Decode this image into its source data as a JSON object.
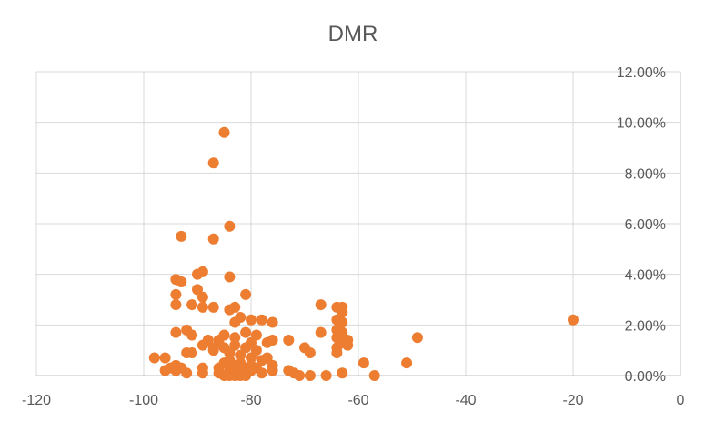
{
  "chart_data": {
    "type": "scatter",
    "title": "DMR",
    "xlabel": "",
    "ylabel": "",
    "xlim": [
      -120,
      0
    ],
    "ylim": [
      0,
      0.12
    ],
    "x_ticks": [
      -120,
      -100,
      -80,
      -60,
      -40,
      -20,
      0
    ],
    "x_tick_labels": [
      "-120",
      "-100",
      "-80",
      "-60",
      "-40",
      "-20",
      "0"
    ],
    "y_ticks": [
      0,
      0.02,
      0.04,
      0.06,
      0.08,
      0.1,
      0.12
    ],
    "y_tick_labels": [
      "0.00%",
      "2.00%",
      "4.00%",
      "6.00%",
      "8.00%",
      "10.00%",
      "12.00%"
    ],
    "y_axis_position": "right",
    "grid": true,
    "legend": "none",
    "series_color": "#ED7D31",
    "points": [
      {
        "x": -85,
        "y": 0.096
      },
      {
        "x": -87,
        "y": 0.084
      },
      {
        "x": -84,
        "y": 0.059
      },
      {
        "x": -93,
        "y": 0.055
      },
      {
        "x": -87,
        "y": 0.054
      },
      {
        "x": -89,
        "y": 0.041
      },
      {
        "x": -90,
        "y": 0.04
      },
      {
        "x": -84,
        "y": 0.039
      },
      {
        "x": -94,
        "y": 0.038
      },
      {
        "x": -93,
        "y": 0.037
      },
      {
        "x": -90,
        "y": 0.034
      },
      {
        "x": -94,
        "y": 0.032
      },
      {
        "x": -89,
        "y": 0.031
      },
      {
        "x": -81,
        "y": 0.032
      },
      {
        "x": -94,
        "y": 0.028
      },
      {
        "x": -91,
        "y": 0.028
      },
      {
        "x": -89,
        "y": 0.027
      },
      {
        "x": -87,
        "y": 0.027
      },
      {
        "x": -84,
        "y": 0.026
      },
      {
        "x": -83,
        "y": 0.027
      },
      {
        "x": -82,
        "y": 0.023
      },
      {
        "x": -83,
        "y": 0.021
      },
      {
        "x": -80,
        "y": 0.022
      },
      {
        "x": -78,
        "y": 0.022
      },
      {
        "x": -76,
        "y": 0.021
      },
      {
        "x": -92,
        "y": 0.018
      },
      {
        "x": -94,
        "y": 0.017
      },
      {
        "x": -91,
        "y": 0.016
      },
      {
        "x": -85,
        "y": 0.016
      },
      {
        "x": -81,
        "y": 0.017
      },
      {
        "x": -79,
        "y": 0.016
      },
      {
        "x": -88,
        "y": 0.014
      },
      {
        "x": -86,
        "y": 0.014
      },
      {
        "x": -83,
        "y": 0.015
      },
      {
        "x": -80,
        "y": 0.013
      },
      {
        "x": -77,
        "y": 0.013
      },
      {
        "x": -76,
        "y": 0.014
      },
      {
        "x": -73,
        "y": 0.014
      },
      {
        "x": -89,
        "y": 0.012
      },
      {
        "x": -87,
        "y": 0.011
      },
      {
        "x": -85,
        "y": 0.011
      },
      {
        "x": -83,
        "y": 0.012
      },
      {
        "x": -81,
        "y": 0.011
      },
      {
        "x": -79,
        "y": 0.01
      },
      {
        "x": -92,
        "y": 0.009
      },
      {
        "x": -91,
        "y": 0.009
      },
      {
        "x": -87,
        "y": 0.01
      },
      {
        "x": -84,
        "y": 0.009
      },
      {
        "x": -82,
        "y": 0.008
      },
      {
        "x": -80,
        "y": 0.007
      },
      {
        "x": -78,
        "y": 0.006
      },
      {
        "x": -77,
        "y": 0.007
      },
      {
        "x": -98,
        "y": 0.007
      },
      {
        "x": -96,
        "y": 0.007
      },
      {
        "x": -94,
        "y": 0.004
      },
      {
        "x": -95,
        "y": 0.003
      },
      {
        "x": -93,
        "y": 0.003
      },
      {
        "x": -96,
        "y": 0.002
      },
      {
        "x": -94,
        "y": 0.002
      },
      {
        "x": -92,
        "y": 0.001
      },
      {
        "x": -89,
        "y": 0.003
      },
      {
        "x": -89,
        "y": 0.001
      },
      {
        "x": -86,
        "y": 0.003
      },
      {
        "x": -86,
        "y": 0.001
      },
      {
        "x": -85,
        "y": 0.005
      },
      {
        "x": -84,
        "y": 0.006
      },
      {
        "x": -84,
        "y": 0.002
      },
      {
        "x": -83,
        "y": 0.004
      },
      {
        "x": -83,
        "y": 0.001
      },
      {
        "x": -82,
        "y": 0.005
      },
      {
        "x": -82,
        "y": 0.002
      },
      {
        "x": -81,
        "y": 0.003
      },
      {
        "x": -81,
        "y": 0.001
      },
      {
        "x": -80,
        "y": 0.004
      },
      {
        "x": -80,
        "y": 0.002
      },
      {
        "x": -79,
        "y": 0.003
      },
      {
        "x": -78,
        "y": 0.001
      },
      {
        "x": -76,
        "y": 0.004
      },
      {
        "x": -76,
        "y": 0.002
      },
      {
        "x": -85,
        "y": 0.0
      },
      {
        "x": -84,
        "y": 0.0
      },
      {
        "x": -83,
        "y": 0.0
      },
      {
        "x": -82,
        "y": 0.0
      },
      {
        "x": -81,
        "y": 0.0
      },
      {
        "x": -73,
        "y": 0.002
      },
      {
        "x": -72,
        "y": 0.001
      },
      {
        "x": -71,
        "y": 0.0
      },
      {
        "x": -69,
        "y": 0.0
      },
      {
        "x": -66,
        "y": 0.0
      },
      {
        "x": -70,
        "y": 0.011
      },
      {
        "x": -69,
        "y": 0.009
      },
      {
        "x": -67,
        "y": 0.028
      },
      {
        "x": -67,
        "y": 0.017
      },
      {
        "x": -64,
        "y": 0.027
      },
      {
        "x": -63,
        "y": 0.027
      },
      {
        "x": -63,
        "y": 0.025
      },
      {
        "x": -64,
        "y": 0.022
      },
      {
        "x": -63,
        "y": 0.021
      },
      {
        "x": -64,
        "y": 0.018
      },
      {
        "x": -63,
        "y": 0.017
      },
      {
        "x": -64,
        "y": 0.015
      },
      {
        "x": -62,
        "y": 0.014
      },
      {
        "x": -63,
        "y": 0.013
      },
      {
        "x": -62,
        "y": 0.012
      },
      {
        "x": -64,
        "y": 0.011
      },
      {
        "x": -64,
        "y": 0.009
      },
      {
        "x": -63,
        "y": 0.001
      },
      {
        "x": -59,
        "y": 0.005
      },
      {
        "x": -57,
        "y": 0.0
      },
      {
        "x": -51,
        "y": 0.005
      },
      {
        "x": -49,
        "y": 0.015
      },
      {
        "x": -20,
        "y": 0.022
      }
    ]
  }
}
